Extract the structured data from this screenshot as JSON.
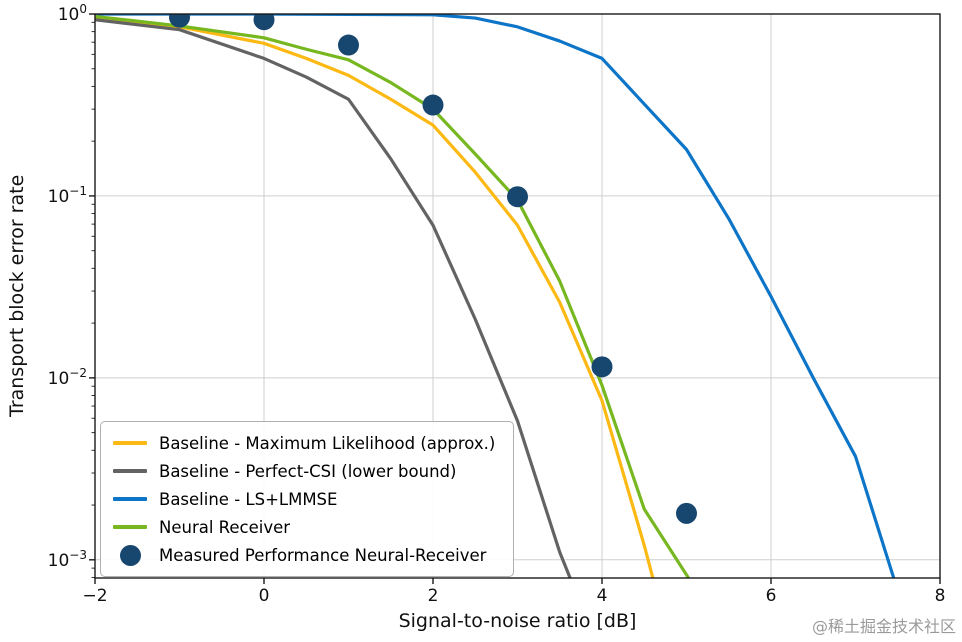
{
  "figure": {
    "background": "#ffffff",
    "watermark_text": "@稀土掘金技术社区"
  },
  "chart_data": {
    "type": "line",
    "title": "",
    "xlabel": "Signal-to-noise ratio [dB]",
    "ylabel": "Transport block error rate",
    "x_range": [
      -2,
      8
    ],
    "y_log_range": [
      -3.1,
      0
    ],
    "y_scale": "log",
    "grid": true,
    "legend_position": "lower left",
    "x_tick_values": [
      -2,
      0,
      2,
      4,
      6,
      8
    ],
    "x_tick_labels": [
      "−2",
      "0",
      "2",
      "4",
      "6",
      "8"
    ],
    "y_tick_exponents": [
      0,
      -1,
      -2,
      -3
    ],
    "y_tick_labels": [
      {
        "base": "10",
        "exp": "0"
      },
      {
        "base": "10",
        "exp": "−1"
      },
      {
        "base": "10",
        "exp": "−2"
      },
      {
        "base": "10",
        "exp": "−3"
      }
    ],
    "colors": {
      "grid": "#cfcfcf",
      "spine": "#1a1a1a",
      "tick_label": "#111111"
    },
    "series": [
      {
        "name": "Baseline - Maximum Likelihood (approx.)",
        "color": "#fdb913",
        "style": "line",
        "x": [
          -2,
          -1,
          0,
          0.5,
          1,
          1.5,
          2,
          2.5,
          3,
          3.5,
          4,
          4.5,
          4.6
        ],
        "y": [
          0.96,
          0.85,
          0.69,
          0.57,
          0.46,
          0.34,
          0.245,
          0.135,
          0.069,
          0.026,
          0.0075,
          0.0012,
          0.0008
        ]
      },
      {
        "name": "Baseline - Perfect-CSI (lower bound)",
        "color": "#636363",
        "style": "line",
        "x": [
          -2,
          -1,
          0,
          0.5,
          1,
          1.5,
          2,
          2.5,
          3,
          3.5,
          3.62
        ],
        "y": [
          0.93,
          0.82,
          0.57,
          0.45,
          0.34,
          0.16,
          0.069,
          0.021,
          0.0058,
          0.0011,
          0.0008
        ]
      },
      {
        "name": "Baseline - LS+LMMSE",
        "color": "#0d75c8",
        "style": "line",
        "x": [
          -2,
          -1,
          0,
          1,
          2,
          2.5,
          3,
          3.5,
          4,
          4.5,
          5,
          5.5,
          6,
          6.5,
          7,
          7.45
        ],
        "y": [
          1.0,
          1.0,
          1.0,
          0.995,
          0.99,
          0.95,
          0.85,
          0.71,
          0.57,
          0.32,
          0.18,
          0.075,
          0.028,
          0.01,
          0.0037,
          0.0008
        ]
      },
      {
        "name": "Neural Receiver",
        "color": "#77b71f",
        "style": "line",
        "x": [
          -2,
          -1,
          0,
          0.5,
          1,
          1.5,
          2,
          2.5,
          3,
          3.5,
          4,
          4.5,
          5.02
        ],
        "y": [
          0.97,
          0.86,
          0.74,
          0.64,
          0.56,
          0.42,
          0.3,
          0.17,
          0.095,
          0.034,
          0.0091,
          0.0019,
          0.0008
        ]
      },
      {
        "name": "Measured Performance Neural-Receiver",
        "color": "#17466f",
        "style": "scatter",
        "marker_radius": 10.5,
        "x": [
          -1,
          0,
          1,
          2,
          3,
          4,
          5
        ],
        "y": [
          0.96,
          0.93,
          0.675,
          0.316,
          0.099,
          0.0115,
          0.0018
        ]
      }
    ]
  }
}
